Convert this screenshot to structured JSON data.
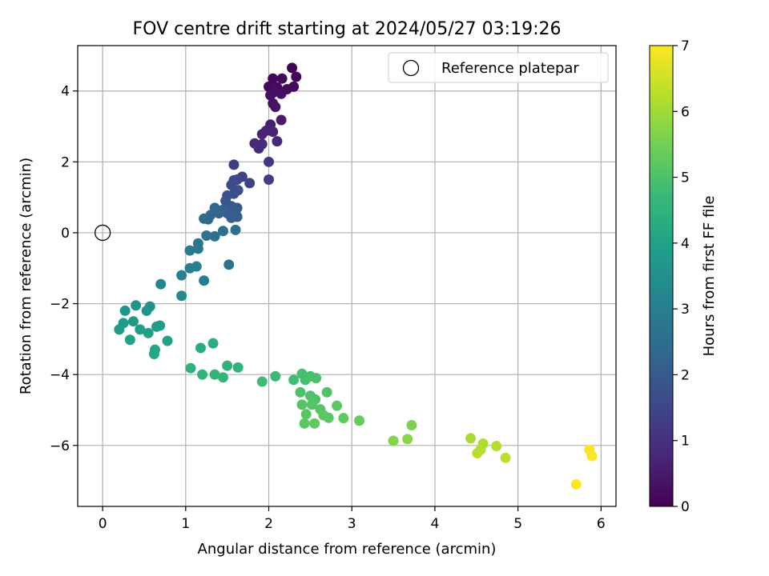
{
  "chart_data": {
    "type": "scatter",
    "title": "FOV centre drift starting at 2024/05/27 03:19:26",
    "xlabel": "Angular distance from reference (arcmin)",
    "ylabel": "Rotation from reference (arcmin)",
    "xlim": [
      -0.3,
      6.18
    ],
    "ylim": [
      -7.72,
      5.28
    ],
    "xticks": [
      0,
      1,
      2,
      3,
      4,
      5,
      6
    ],
    "yticks": [
      -6,
      -4,
      -2,
      0,
      2,
      4
    ],
    "xtick_labels": [
      "0",
      "1",
      "2",
      "3",
      "4",
      "5",
      "6"
    ],
    "ytick_labels": [
      "−6",
      "−4",
      "−2",
      "0",
      "2",
      "4"
    ],
    "grid": true,
    "legend": {
      "placement": "top-right",
      "entries": [
        "Reference platepar"
      ]
    },
    "reference_point": {
      "x": 0,
      "y": 0,
      "marker": "open-circle"
    },
    "colorbar": {
      "label": "Hours from first FF file",
      "range": [
        0,
        7
      ],
      "ticks": [
        0,
        1,
        2,
        3,
        4,
        5,
        6,
        7
      ],
      "tick_labels": [
        "0",
        "1",
        "2",
        "3",
        "4",
        "5",
        "6",
        "7"
      ],
      "colormap": "viridis"
    },
    "colors": {
      "viridis": [
        "#440154",
        "#482878",
        "#3e4989",
        "#31688e",
        "#26828e",
        "#1f9e89",
        "#35b779",
        "#6ece58",
        "#b5de2b",
        "#fde725"
      ],
      "reference_marker": "#000000",
      "grid": "#b0b0b0"
    },
    "points": [
      {
        "x": 2.28,
        "y": 4.65,
        "c": 0.05
      },
      {
        "x": 2.05,
        "y": 4.35,
        "c": 0.1
      },
      {
        "x": 2.16,
        "y": 4.35,
        "c": 0.12
      },
      {
        "x": 2.33,
        "y": 4.4,
        "c": 0.1
      },
      {
        "x": 2.0,
        "y": 4.12,
        "c": 0.15
      },
      {
        "x": 2.1,
        "y": 4.1,
        "c": 0.2
      },
      {
        "x": 2.22,
        "y": 4.05,
        "c": 0.2
      },
      {
        "x": 2.3,
        "y": 4.12,
        "c": 0.15
      },
      {
        "x": 2.05,
        "y": 3.95,
        "c": 0.25
      },
      {
        "x": 2.15,
        "y": 3.92,
        "c": 0.3
      },
      {
        "x": 2.02,
        "y": 3.88,
        "c": 0.3
      },
      {
        "x": 2.05,
        "y": 3.65,
        "c": 0.35
      },
      {
        "x": 2.08,
        "y": 3.55,
        "c": 0.4
      },
      {
        "x": 2.15,
        "y": 3.18,
        "c": 0.5
      },
      {
        "x": 2.02,
        "y": 3.05,
        "c": 0.6
      },
      {
        "x": 1.97,
        "y": 2.88,
        "c": 0.65
      },
      {
        "x": 2.05,
        "y": 2.85,
        "c": 0.7
      },
      {
        "x": 1.92,
        "y": 2.78,
        "c": 0.7
      },
      {
        "x": 1.83,
        "y": 2.52,
        "c": 0.8
      },
      {
        "x": 1.92,
        "y": 2.5,
        "c": 0.85
      },
      {
        "x": 1.88,
        "y": 2.38,
        "c": 0.9
      },
      {
        "x": 2.1,
        "y": 2.58,
        "c": 0.8
      },
      {
        "x": 2.0,
        "y": 2.0,
        "c": 1.1
      },
      {
        "x": 2.0,
        "y": 1.5,
        "c": 1.3
      },
      {
        "x": 1.58,
        "y": 1.92,
        "c": 1.3
      },
      {
        "x": 1.77,
        "y": 1.4,
        "c": 1.4
      },
      {
        "x": 1.68,
        "y": 1.58,
        "c": 1.4
      },
      {
        "x": 1.62,
        "y": 1.5,
        "c": 1.5
      },
      {
        "x": 1.58,
        "y": 1.48,
        "c": 1.55
      },
      {
        "x": 1.55,
        "y": 1.35,
        "c": 1.6
      },
      {
        "x": 1.63,
        "y": 1.2,
        "c": 1.65
      },
      {
        "x": 1.58,
        "y": 1.1,
        "c": 1.7
      },
      {
        "x": 1.5,
        "y": 1.05,
        "c": 1.8
      },
      {
        "x": 1.48,
        "y": 0.9,
        "c": 1.85
      },
      {
        "x": 1.55,
        "y": 0.75,
        "c": 1.9
      },
      {
        "x": 1.62,
        "y": 0.7,
        "c": 1.95
      },
      {
        "x": 1.6,
        "y": 0.6,
        "c": 2.0
      },
      {
        "x": 1.62,
        "y": 0.45,
        "c": 2.05
      },
      {
        "x": 1.55,
        "y": 0.42,
        "c": 2.1
      },
      {
        "x": 1.5,
        "y": 0.55,
        "c": 2.1
      },
      {
        "x": 1.45,
        "y": 0.65,
        "c": 2.15
      },
      {
        "x": 1.4,
        "y": 0.55,
        "c": 2.2
      },
      {
        "x": 1.35,
        "y": 0.7,
        "c": 2.25
      },
      {
        "x": 1.3,
        "y": 0.5,
        "c": 2.3
      },
      {
        "x": 1.27,
        "y": 0.38,
        "c": 2.35
      },
      {
        "x": 1.22,
        "y": 0.4,
        "c": 2.4
      },
      {
        "x": 1.37,
        "y": 0.62,
        "c": 2.3
      },
      {
        "x": 1.6,
        "y": 0.08,
        "c": 2.5
      },
      {
        "x": 1.45,
        "y": 0.05,
        "c": 2.55
      },
      {
        "x": 1.35,
        "y": -0.1,
        "c": 2.6
      },
      {
        "x": 1.25,
        "y": -0.08,
        "c": 2.65
      },
      {
        "x": 1.15,
        "y": -0.3,
        "c": 2.75
      },
      {
        "x": 1.15,
        "y": -0.45,
        "c": 2.8
      },
      {
        "x": 1.05,
        "y": -0.5,
        "c": 2.85
      },
      {
        "x": 1.52,
        "y": -0.9,
        "c": 2.7
      },
      {
        "x": 1.13,
        "y": -0.95,
        "c": 2.95
      },
      {
        "x": 1.05,
        "y": -1.0,
        "c": 3.0
      },
      {
        "x": 0.95,
        "y": -1.2,
        "c": 3.05
      },
      {
        "x": 1.22,
        "y": -1.35,
        "c": 3.0
      },
      {
        "x": 0.7,
        "y": -1.45,
        "c": 3.2
      },
      {
        "x": 0.95,
        "y": -1.78,
        "c": 3.3
      },
      {
        "x": 0.4,
        "y": -2.05,
        "c": 3.6
      },
      {
        "x": 0.57,
        "y": -2.08,
        "c": 3.55
      },
      {
        "x": 0.53,
        "y": -2.2,
        "c": 3.65
      },
      {
        "x": 0.27,
        "y": -2.2,
        "c": 3.7
      },
      {
        "x": 0.37,
        "y": -2.5,
        "c": 3.75
      },
      {
        "x": 0.25,
        "y": -2.55,
        "c": 3.8
      },
      {
        "x": 0.2,
        "y": -2.73,
        "c": 3.85
      },
      {
        "x": 0.45,
        "y": -2.73,
        "c": 3.9
      },
      {
        "x": 0.55,
        "y": -2.83,
        "c": 3.95
      },
      {
        "x": 0.65,
        "y": -2.65,
        "c": 3.85
      },
      {
        "x": 0.69,
        "y": -2.62,
        "c": 3.9
      },
      {
        "x": 0.33,
        "y": -3.02,
        "c": 4.0
      },
      {
        "x": 0.78,
        "y": -3.05,
        "c": 4.0
      },
      {
        "x": 0.63,
        "y": -3.3,
        "c": 4.1
      },
      {
        "x": 0.62,
        "y": -3.42,
        "c": 4.15
      },
      {
        "x": 1.18,
        "y": -3.25,
        "c": 4.35
      },
      {
        "x": 1.33,
        "y": -3.12,
        "c": 4.35
      },
      {
        "x": 1.06,
        "y": -3.82,
        "c": 4.5
      },
      {
        "x": 1.5,
        "y": -3.75,
        "c": 4.5
      },
      {
        "x": 1.63,
        "y": -3.8,
        "c": 4.55
      },
      {
        "x": 1.2,
        "y": -4.0,
        "c": 4.6
      },
      {
        "x": 1.35,
        "y": -4.0,
        "c": 4.6
      },
      {
        "x": 1.45,
        "y": -4.08,
        "c": 4.65
      },
      {
        "x": 2.08,
        "y": -4.05,
        "c": 4.75
      },
      {
        "x": 1.92,
        "y": -4.2,
        "c": 4.8
      },
      {
        "x": 2.3,
        "y": -4.15,
        "c": 4.85
      },
      {
        "x": 2.4,
        "y": -3.98,
        "c": 4.9
      },
      {
        "x": 2.44,
        "y": -4.15,
        "c": 4.9
      },
      {
        "x": 2.5,
        "y": -4.05,
        "c": 4.95
      },
      {
        "x": 2.57,
        "y": -4.1,
        "c": 4.95
      },
      {
        "x": 2.38,
        "y": -4.5,
        "c": 5.0
      },
      {
        "x": 2.5,
        "y": -4.6,
        "c": 5.0
      },
      {
        "x": 2.56,
        "y": -4.7,
        "c": 5.05
      },
      {
        "x": 2.7,
        "y": -4.5,
        "c": 5.05
      },
      {
        "x": 2.4,
        "y": -4.85,
        "c": 5.1
      },
      {
        "x": 2.52,
        "y": -4.85,
        "c": 5.1
      },
      {
        "x": 2.45,
        "y": -5.12,
        "c": 5.15
      },
      {
        "x": 2.62,
        "y": -4.98,
        "c": 5.15
      },
      {
        "x": 2.66,
        "y": -5.15,
        "c": 5.2
      },
      {
        "x": 2.72,
        "y": -5.22,
        "c": 5.2
      },
      {
        "x": 2.82,
        "y": -4.88,
        "c": 5.2
      },
      {
        "x": 2.9,
        "y": -5.23,
        "c": 5.25
      },
      {
        "x": 2.43,
        "y": -5.38,
        "c": 5.2
      },
      {
        "x": 2.55,
        "y": -5.38,
        "c": 5.25
      },
      {
        "x": 3.09,
        "y": -5.3,
        "c": 5.35
      },
      {
        "x": 3.72,
        "y": -5.43,
        "c": 5.6
      },
      {
        "x": 3.5,
        "y": -5.87,
        "c": 5.7
      },
      {
        "x": 3.67,
        "y": -5.82,
        "c": 5.75
      },
      {
        "x": 4.43,
        "y": -5.8,
        "c": 6.1
      },
      {
        "x": 4.58,
        "y": -5.95,
        "c": 6.15
      },
      {
        "x": 4.74,
        "y": -6.02,
        "c": 6.2
      },
      {
        "x": 4.55,
        "y": -6.12,
        "c": 6.2
      },
      {
        "x": 4.51,
        "y": -6.22,
        "c": 6.25
      },
      {
        "x": 4.85,
        "y": -6.35,
        "c": 6.3
      },
      {
        "x": 5.86,
        "y": -6.12,
        "c": 6.95
      },
      {
        "x": 5.89,
        "y": -6.3,
        "c": 7.0
      },
      {
        "x": 5.7,
        "y": -7.1,
        "c": 7.0
      }
    ]
  }
}
